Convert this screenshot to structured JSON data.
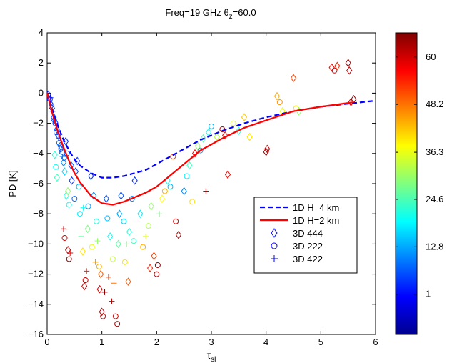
{
  "chart_data": {
    "type": "scatter",
    "title": "Freq=19 GHz",
    "title_theta": "θ",
    "title_theta_sub": "z",
    "title_theta_value": "=60.0",
    "xlabel_base": "τ",
    "xlabel_sub": "sl",
    "ylabel": "PD [K]",
    "xlim": [
      0,
      6
    ],
    "ylim": [
      -16,
      4
    ],
    "x_ticks": [
      0,
      1,
      2,
      3,
      4,
      5,
      6
    ],
    "y_ticks": [
      -16,
      -14,
      -12,
      -10,
      -8,
      -6,
      -4,
      -2,
      0,
      2,
      4
    ],
    "x_tick_labels": [
      "0",
      "1",
      "2",
      "3",
      "4",
      "5",
      "6"
    ],
    "y_tick_labels": [
      "−16",
      "−14",
      "−12",
      "−10",
      "−8",
      "−6",
      "−4",
      "−2",
      "0",
      "2",
      "4"
    ],
    "grid": false,
    "legend_position": "center-right",
    "colorbar": {
      "range": [
        -9,
        66
      ],
      "ticks": [
        1,
        12.8,
        24.6,
        36.3,
        48.2,
        60
      ],
      "tick_labels": [
        "1",
        "12.8",
        "24.6",
        "36.3",
        "48.2",
        "60"
      ],
      "colormap": "jet"
    },
    "lines": [
      {
        "name": "1D H=4 km",
        "color": "#0000ff",
        "style": "dashed",
        "x": [
          0,
          0.1,
          0.2,
          0.3,
          0.4,
          0.5,
          0.6,
          0.8,
          1.0,
          1.2,
          1.4,
          1.6,
          1.8,
          2.0,
          2.2,
          2.5,
          2.8,
          3.2,
          3.6,
          4.0,
          4.5,
          5.0,
          5.5,
          6.0
        ],
        "y": [
          0,
          -1.2,
          -2.2,
          -3.1,
          -3.8,
          -4.4,
          -4.8,
          -5.3,
          -5.6,
          -5.6,
          -5.5,
          -5.3,
          -5.1,
          -4.7,
          -4.3,
          -3.7,
          -3.1,
          -2.5,
          -2.0,
          -1.6,
          -1.2,
          -0.9,
          -0.7,
          -0.5
        ]
      },
      {
        "name": "1D H=2 km",
        "color": "#ff0000",
        "style": "solid",
        "x": [
          0,
          0.1,
          0.2,
          0.3,
          0.4,
          0.5,
          0.6,
          0.8,
          1.0,
          1.2,
          1.4,
          1.6,
          1.8,
          2.0,
          2.2,
          2.5,
          2.8,
          3.2,
          3.6,
          4.0,
          4.5,
          5.0,
          5.6
        ],
        "y": [
          0,
          -1.4,
          -2.6,
          -3.6,
          -4.5,
          -5.3,
          -5.9,
          -6.8,
          -7.3,
          -7.4,
          -7.2,
          -6.9,
          -6.6,
          -6.2,
          -5.6,
          -4.7,
          -3.8,
          -3.0,
          -2.3,
          -1.8,
          -1.2,
          -0.9,
          -0.6
        ]
      }
    ],
    "series": [
      {
        "name": "3D 444",
        "marker": "diamond"
      },
      {
        "name": "3D 222",
        "marker": "circle"
      },
      {
        "name": "3D 422",
        "marker": "plus"
      }
    ],
    "scatter_points": [
      {
        "x": 0.02,
        "y": -0.1,
        "c": 2,
        "m": "diamond"
      },
      {
        "x": 0.05,
        "y": -0.4,
        "c": 3,
        "m": "circle"
      },
      {
        "x": 0.08,
        "y": -0.8,
        "c": 4,
        "m": "diamond"
      },
      {
        "x": 0.1,
        "y": -1.2,
        "c": 5,
        "m": "plus"
      },
      {
        "x": 0.12,
        "y": -1.6,
        "c": 6,
        "m": "diamond"
      },
      {
        "x": 0.15,
        "y": -2.0,
        "c": 4,
        "m": "circle"
      },
      {
        "x": 0.18,
        "y": -2.4,
        "c": 7,
        "m": "diamond"
      },
      {
        "x": 0.2,
        "y": -2.8,
        "c": 5,
        "m": "diamond"
      },
      {
        "x": 0.22,
        "y": -3.3,
        "c": 8,
        "m": "circle"
      },
      {
        "x": 0.25,
        "y": -3.7,
        "c": 6,
        "m": "diamond"
      },
      {
        "x": 0.28,
        "y": -4.2,
        "c": 9,
        "m": "plus"
      },
      {
        "x": 0.3,
        "y": -4.6,
        "c": 10,
        "m": "diamond"
      },
      {
        "x": 0.14,
        "y": -4.1,
        "c": 22,
        "m": "diamond"
      },
      {
        "x": 0.16,
        "y": -4.9,
        "c": 20,
        "m": "circle"
      },
      {
        "x": 0.18,
        "y": -5.6,
        "c": 24,
        "m": "diamond"
      },
      {
        "x": 0.32,
        "y": -5.2,
        "c": 16,
        "m": "diamond"
      },
      {
        "x": 0.35,
        "y": -6.8,
        "c": 22,
        "m": "diamond"
      },
      {
        "x": 0.38,
        "y": -6.5,
        "c": 30,
        "m": "diamond"
      },
      {
        "x": 0.4,
        "y": -7.4,
        "c": 20,
        "m": "circle"
      },
      {
        "x": 0.3,
        "y": -9.0,
        "c": 62,
        "m": "plus"
      },
      {
        "x": 0.32,
        "y": -9.6,
        "c": 60,
        "m": "circle"
      },
      {
        "x": 0.38,
        "y": -10.4,
        "c": 62,
        "m": "diamond"
      },
      {
        "x": 0.4,
        "y": -11.0,
        "c": 64,
        "m": "circle"
      },
      {
        "x": 0.42,
        "y": -10.6,
        "c": 58,
        "m": "plus"
      },
      {
        "x": 0.45,
        "y": -5.8,
        "c": 4,
        "m": "diamond"
      },
      {
        "x": 0.5,
        "y": -7.0,
        "c": 8,
        "m": "circle"
      },
      {
        "x": 0.55,
        "y": -4.5,
        "c": 3,
        "m": "diamond"
      },
      {
        "x": 0.6,
        "y": -8.0,
        "c": 18,
        "m": "circle"
      },
      {
        "x": 0.62,
        "y": -9.5,
        "c": 26,
        "m": "plus"
      },
      {
        "x": 0.65,
        "y": -10.5,
        "c": 40,
        "m": "diamond"
      },
      {
        "x": 0.68,
        "y": -12.8,
        "c": 60,
        "m": "diamond"
      },
      {
        "x": 0.7,
        "y": -12.4,
        "c": 62,
        "m": "circle"
      },
      {
        "x": 0.72,
        "y": -11.8,
        "c": 55,
        "m": "plus"
      },
      {
        "x": 0.75,
        "y": -7.5,
        "c": 12,
        "m": "circle"
      },
      {
        "x": 0.8,
        "y": -5.5,
        "c": 4,
        "m": "diamond"
      },
      {
        "x": 0.85,
        "y": -6.8,
        "c": 10,
        "m": "diamond"
      },
      {
        "x": 0.9,
        "y": -8.5,
        "c": 22,
        "m": "circle"
      },
      {
        "x": 0.92,
        "y": -9.8,
        "c": 30,
        "m": "plus"
      },
      {
        "x": 0.95,
        "y": -11.5,
        "c": 44,
        "m": "circle"
      },
      {
        "x": 0.98,
        "y": -12.0,
        "c": 50,
        "m": "diamond"
      },
      {
        "x": 1.0,
        "y": -14.5,
        "c": 62,
        "m": "diamond"
      },
      {
        "x": 1.02,
        "y": -14.8,
        "c": 60,
        "m": "circle"
      },
      {
        "x": 1.05,
        "y": -13.2,
        "c": 65,
        "m": "plus"
      },
      {
        "x": 1.08,
        "y": -7.0,
        "c": 6,
        "m": "diamond"
      },
      {
        "x": 1.1,
        "y": -8.3,
        "c": 14,
        "m": "circle"
      },
      {
        "x": 1.15,
        "y": -9.5,
        "c": 20,
        "m": "diamond"
      },
      {
        "x": 1.2,
        "y": -11.0,
        "c": 34,
        "m": "circle"
      },
      {
        "x": 1.22,
        "y": -12.6,
        "c": 48,
        "m": "plus"
      },
      {
        "x": 1.25,
        "y": -14.8,
        "c": 60,
        "m": "circle"
      },
      {
        "x": 1.28,
        "y": -15.3,
        "c": 64,
        "m": "circle"
      },
      {
        "x": 1.3,
        "y": -10.0,
        "c": 26,
        "m": "diamond"
      },
      {
        "x": 1.35,
        "y": -6.8,
        "c": 6,
        "m": "diamond"
      },
      {
        "x": 1.4,
        "y": -8.5,
        "c": 16,
        "m": "circle"
      },
      {
        "x": 1.45,
        "y": -10.0,
        "c": 28,
        "m": "plus"
      },
      {
        "x": 1.5,
        "y": -9.2,
        "c": 22,
        "m": "diamond"
      },
      {
        "x": 1.55,
        "y": -7.0,
        "c": 10,
        "m": "circle"
      },
      {
        "x": 1.6,
        "y": -5.8,
        "c": 4,
        "m": "diamond"
      },
      {
        "x": 1.7,
        "y": -8.0,
        "c": 18,
        "m": "diamond"
      },
      {
        "x": 1.8,
        "y": -9.5,
        "c": 36,
        "m": "plus"
      },
      {
        "x": 1.85,
        "y": -8.8,
        "c": 32,
        "m": "circle"
      },
      {
        "x": 1.9,
        "y": -7.5,
        "c": 30,
        "m": "diamond"
      },
      {
        "x": 1.95,
        "y": -10.8,
        "c": 52,
        "m": "diamond"
      },
      {
        "x": 2.0,
        "y": -12.0,
        "c": 62,
        "m": "circle"
      },
      {
        "x": 2.02,
        "y": -11.4,
        "c": 64,
        "m": "circle"
      },
      {
        "x": 2.05,
        "y": -8.0,
        "c": 28,
        "m": "plus"
      },
      {
        "x": 2.1,
        "y": -7.0,
        "c": 38,
        "m": "diamond"
      },
      {
        "x": 2.15,
        "y": -6.5,
        "c": 44,
        "m": "circle"
      },
      {
        "x": 2.2,
        "y": -5.8,
        "c": 20,
        "m": "diamond"
      },
      {
        "x": 2.25,
        "y": -6.2,
        "c": 14,
        "m": "circle"
      },
      {
        "x": 2.3,
        "y": -4.2,
        "c": 52,
        "m": "circle"
      },
      {
        "x": 2.35,
        "y": -8.5,
        "c": 60,
        "m": "circle"
      },
      {
        "x": 2.4,
        "y": -9.4,
        "c": 64,
        "m": "diamond"
      },
      {
        "x": 2.5,
        "y": -6.5,
        "c": 10,
        "m": "diamond"
      },
      {
        "x": 2.55,
        "y": -5.5,
        "c": 18,
        "m": "circle"
      },
      {
        "x": 2.6,
        "y": -4.8,
        "c": 24,
        "m": "diamond"
      },
      {
        "x": 2.65,
        "y": -7.2,
        "c": 40,
        "m": "circle"
      },
      {
        "x": 2.7,
        "y": -4.0,
        "c": 56,
        "m": "diamond"
      },
      {
        "x": 2.75,
        "y": -3.5,
        "c": 30,
        "m": "diamond"
      },
      {
        "x": 2.8,
        "y": -3.8,
        "c": 12,
        "m": "circle"
      },
      {
        "x": 2.85,
        "y": -3.0,
        "c": 26,
        "m": "diamond"
      },
      {
        "x": 2.9,
        "y": -6.5,
        "c": 60,
        "m": "plus"
      },
      {
        "x": 2.95,
        "y": -2.6,
        "c": 20,
        "m": "diamond"
      },
      {
        "x": 3.0,
        "y": -2.2,
        "c": 14,
        "m": "circle"
      },
      {
        "x": 3.1,
        "y": -2.9,
        "c": 32,
        "m": "diamond"
      },
      {
        "x": 3.2,
        "y": -2.4,
        "c": 62,
        "m": "circle"
      },
      {
        "x": 3.25,
        "y": -2.8,
        "c": 58,
        "m": "diamond"
      },
      {
        "x": 3.3,
        "y": -5.4,
        "c": 56,
        "m": "diamond"
      },
      {
        "x": 3.4,
        "y": -2.0,
        "c": 36,
        "m": "circle"
      },
      {
        "x": 3.5,
        "y": -2.5,
        "c": 22,
        "m": "diamond"
      },
      {
        "x": 3.6,
        "y": -1.6,
        "c": 42,
        "m": "diamond"
      },
      {
        "x": 3.7,
        "y": -2.9,
        "c": 40,
        "m": "diamond"
      },
      {
        "x": 4.0,
        "y": -3.9,
        "c": 64,
        "m": "diamond"
      },
      {
        "x": 4.02,
        "y": -3.7,
        "c": 62,
        "m": "diamond"
      },
      {
        "x": 4.2,
        "y": -0.2,
        "c": 44,
        "m": "diamond"
      },
      {
        "x": 4.25,
        "y": -0.6,
        "c": 46,
        "m": "circle"
      },
      {
        "x": 4.3,
        "y": -1.2,
        "c": 36,
        "m": "diamond"
      },
      {
        "x": 4.5,
        "y": 1.0,
        "c": 52,
        "m": "diamond"
      },
      {
        "x": 4.55,
        "y": -1.0,
        "c": 40,
        "m": "circle"
      },
      {
        "x": 4.6,
        "y": -1.2,
        "c": 30,
        "m": "diamond"
      },
      {
        "x": 5.2,
        "y": 1.7,
        "c": 56,
        "m": "diamond"
      },
      {
        "x": 5.25,
        "y": 1.5,
        "c": 58,
        "m": "circle"
      },
      {
        "x": 5.3,
        "y": 1.8,
        "c": 54,
        "m": "diamond"
      },
      {
        "x": 5.5,
        "y": 2.0,
        "c": 64,
        "m": "diamond"
      },
      {
        "x": 5.52,
        "y": 1.5,
        "c": 62,
        "m": "diamond"
      },
      {
        "x": 5.55,
        "y": -0.6,
        "c": 60,
        "m": "diamond"
      },
      {
        "x": 5.6,
        "y": -0.4,
        "c": 64,
        "m": "diamond"
      },
      {
        "x": 0.06,
        "y": -0.3,
        "c": 2,
        "m": "plus"
      },
      {
        "x": 0.09,
        "y": -1.0,
        "c": 3,
        "m": "diamond"
      },
      {
        "x": 0.13,
        "y": -1.8,
        "c": 6,
        "m": "diamond"
      },
      {
        "x": 0.17,
        "y": -2.6,
        "c": 5,
        "m": "circle"
      },
      {
        "x": 0.21,
        "y": -3.0,
        "c": 6,
        "m": "plus"
      },
      {
        "x": 0.24,
        "y": -3.5,
        "c": 7,
        "m": "diamond"
      },
      {
        "x": 0.27,
        "y": -3.9,
        "c": 8,
        "m": "circle"
      },
      {
        "x": 0.31,
        "y": -4.3,
        "c": 9,
        "m": "diamond"
      },
      {
        "x": 0.34,
        "y": -3.2,
        "c": 4,
        "m": "diamond"
      },
      {
        "x": 0.36,
        "y": -4.0,
        "c": 6,
        "m": "circle"
      },
      {
        "x": 0.44,
        "y": -4.8,
        "c": 8,
        "m": "diamond"
      },
      {
        "x": 0.52,
        "y": -5.2,
        "c": 5,
        "m": "diamond"
      },
      {
        "x": 0.58,
        "y": -6.2,
        "c": 14,
        "m": "circle"
      },
      {
        "x": 0.66,
        "y": -7.6,
        "c": 20,
        "m": "plus"
      },
      {
        "x": 0.74,
        "y": -9.0,
        "c": 28,
        "m": "diamond"
      },
      {
        "x": 0.82,
        "y": -10.2,
        "c": 36,
        "m": "circle"
      },
      {
        "x": 0.88,
        "y": -11.2,
        "c": 46,
        "m": "plus"
      },
      {
        "x": 0.96,
        "y": -13.0,
        "c": 58,
        "m": "diamond"
      },
      {
        "x": 1.12,
        "y": -12.2,
        "c": 52,
        "m": "plus"
      },
      {
        "x": 1.18,
        "y": -13.8,
        "c": 62,
        "m": "plus"
      },
      {
        "x": 1.32,
        "y": -8.0,
        "c": 12,
        "m": "diamond"
      },
      {
        "x": 1.42,
        "y": -11.2,
        "c": 40,
        "m": "circle"
      },
      {
        "x": 1.48,
        "y": -12.5,
        "c": 50,
        "m": "diamond"
      },
      {
        "x": 1.58,
        "y": -9.8,
        "c": 24,
        "m": "circle"
      },
      {
        "x": 1.75,
        "y": -10.2,
        "c": 44,
        "m": "circle"
      },
      {
        "x": 1.88,
        "y": -11.6,
        "c": 54,
        "m": "diamond"
      }
    ]
  }
}
